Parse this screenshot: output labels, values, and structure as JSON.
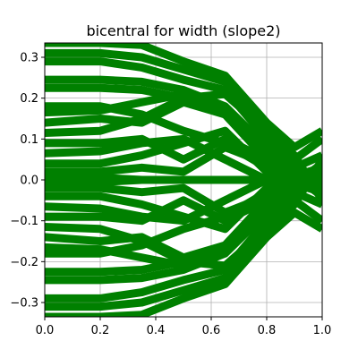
{
  "chart_data": {
    "type": "line",
    "title": "bicentral for width (slope2)",
    "xlabel": "",
    "ylabel": "",
    "xlim": [
      0.0,
      1.0
    ],
    "ylim": [
      -0.335,
      0.335
    ],
    "xticks": [
      0.0,
      0.2,
      0.4,
      0.6,
      0.8,
      1.0
    ],
    "xtick_labels": [
      "0.0",
      "0.2",
      "0.4",
      "0.6",
      "0.8",
      "1.0"
    ],
    "yticks": [
      -0.3,
      -0.2,
      -0.1,
      0.0,
      0.1,
      0.2,
      0.3
    ],
    "ytick_labels": [
      "−0.3",
      "−0.2",
      "−0.1",
      "0.0",
      "0.1",
      "0.2",
      "0.3"
    ],
    "grid": true,
    "legend": "none",
    "color": "#008000",
    "x": [
      0.0,
      0.2,
      0.35,
      0.5,
      0.65,
      0.8,
      0.9,
      1.0
    ],
    "series": [
      {
        "values": [
          0.335,
          0.335,
          0.33,
          0.29,
          0.255,
          0.14,
          0.08,
          0.12
        ]
      },
      {
        "values": [
          0.31,
          0.31,
          0.3,
          0.27,
          0.24,
          0.12,
          0.05,
          0.1
        ]
      },
      {
        "values": [
          0.29,
          0.29,
          0.275,
          0.245,
          0.22,
          0.1,
          0.03,
          0.06
        ]
      },
      {
        "values": [
          0.245,
          0.245,
          0.24,
          0.22,
          0.18,
          0.08,
          0.01,
          0.03
        ]
      },
      {
        "values": [
          0.225,
          0.225,
          0.22,
          0.2,
          0.16,
          0.05,
          0.0,
          0.02
        ]
      },
      {
        "values": [
          0.18,
          0.18,
          0.16,
          0.12,
          0.09,
          0.03,
          -0.01,
          0.01
        ]
      },
      {
        "values": [
          0.165,
          0.17,
          0.19,
          0.21,
          0.17,
          0.06,
          0.02,
          0.0
        ]
      },
      {
        "values": [
          0.14,
          0.15,
          0.14,
          0.19,
          0.16,
          0.09,
          0.04,
          -0.02
        ]
      },
      {
        "values": [
          0.115,
          0.12,
          0.15,
          0.2,
          0.21,
          0.12,
          0.06,
          -0.05
        ]
      },
      {
        "values": [
          0.09,
          0.09,
          0.1,
          0.05,
          0.1,
          0.05,
          0.01,
          -0.04
        ]
      },
      {
        "values": [
          0.065,
          0.07,
          0.09,
          0.1,
          0.05,
          0.0,
          0.03,
          -0.03
        ]
      },
      {
        "values": [
          0.04,
          0.04,
          0.06,
          0.09,
          0.12,
          0.02,
          0.0,
          0.02
        ]
      },
      {
        "values": [
          0.02,
          0.02,
          0.03,
          0.02,
          0.08,
          0.04,
          0.02,
          0.01
        ]
      },
      {
        "values": [
          0.005,
          0.005,
          0.0,
          0.0,
          0.0,
          0.0,
          0.0,
          0.0
        ]
      },
      {
        "values": [
          -0.005,
          -0.005,
          0.0,
          0.0,
          0.0,
          0.0,
          0.0,
          0.0
        ]
      },
      {
        "values": [
          -0.02,
          -0.02,
          -0.03,
          -0.02,
          -0.08,
          -0.04,
          -0.02,
          -0.01
        ]
      },
      {
        "values": [
          -0.04,
          -0.04,
          -0.06,
          -0.09,
          -0.12,
          -0.02,
          0.0,
          -0.02
        ]
      },
      {
        "values": [
          -0.065,
          -0.07,
          -0.09,
          -0.1,
          -0.05,
          0.0,
          -0.03,
          0.03
        ]
      },
      {
        "values": [
          -0.09,
          -0.09,
          -0.1,
          -0.05,
          -0.1,
          -0.05,
          -0.01,
          0.04
        ]
      },
      {
        "values": [
          -0.115,
          -0.12,
          -0.15,
          -0.2,
          -0.21,
          -0.12,
          -0.06,
          0.05
        ]
      },
      {
        "values": [
          -0.14,
          -0.15,
          -0.14,
          -0.19,
          -0.16,
          -0.09,
          -0.04,
          0.02
        ]
      },
      {
        "values": [
          -0.165,
          -0.17,
          -0.19,
          -0.21,
          -0.17,
          -0.06,
          -0.02,
          0.0
        ]
      },
      {
        "values": [
          -0.18,
          -0.18,
          -0.16,
          -0.12,
          -0.09,
          -0.03,
          0.01,
          -0.01
        ]
      },
      {
        "values": [
          -0.225,
          -0.225,
          -0.22,
          -0.2,
          -0.16,
          -0.05,
          0.0,
          -0.02
        ]
      },
      {
        "values": [
          -0.245,
          -0.245,
          -0.24,
          -0.22,
          -0.18,
          -0.08,
          -0.01,
          -0.03
        ]
      },
      {
        "values": [
          -0.29,
          -0.29,
          -0.275,
          -0.245,
          -0.22,
          -0.1,
          -0.03,
          -0.06
        ]
      },
      {
        "values": [
          -0.31,
          -0.31,
          -0.3,
          -0.27,
          -0.24,
          -0.12,
          -0.05,
          -0.1
        ]
      },
      {
        "values": [
          -0.335,
          -0.335,
          -0.33,
          -0.29,
          -0.255,
          -0.14,
          -0.08,
          -0.12
        ]
      }
    ]
  }
}
